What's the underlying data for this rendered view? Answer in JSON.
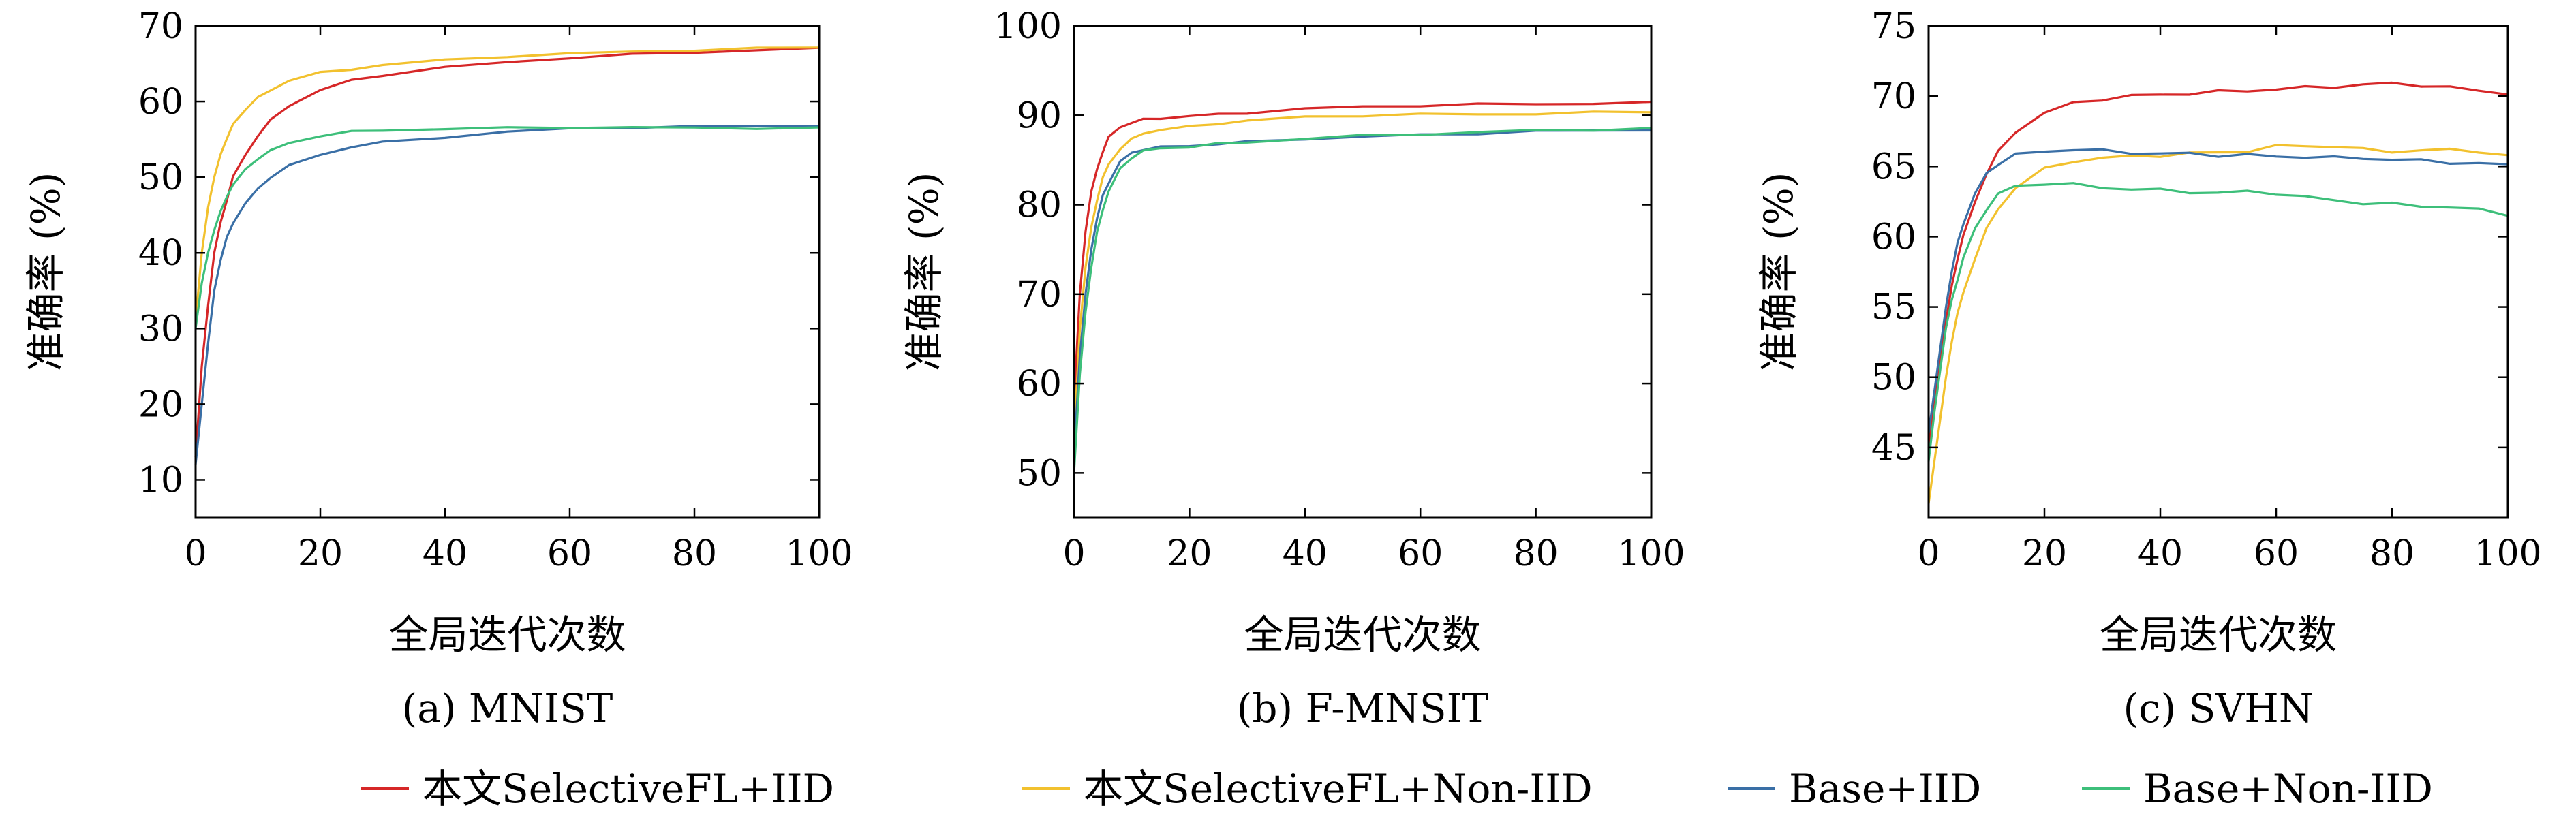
{
  "chart_data": [
    {
      "type": "line",
      "caption": "(a) MNIST",
      "xlabel": "全局迭代次数",
      "ylabel": "准确率 (%)",
      "xlim": [
        0,
        100
      ],
      "ylim": [
        5,
        70
      ],
      "xticks": [
        0,
        20,
        40,
        60,
        80,
        100
      ],
      "yticks": [
        10,
        20,
        30,
        40,
        50,
        60,
        70
      ],
      "grid": false,
      "x": [
        0,
        1,
        2,
        3,
        4,
        5,
        6,
        8,
        10,
        12,
        15,
        20,
        25,
        30,
        40,
        50,
        60,
        70,
        80,
        90,
        100
      ],
      "series": [
        {
          "name": "本文SelectiveFL+IID",
          "values": [
            13,
            25,
            33,
            40,
            44,
            47,
            50,
            53,
            55.5,
            57.5,
            59.5,
            61.5,
            62.8,
            63.5,
            64.5,
            65.2,
            65.8,
            66.2,
            66.5,
            66.8,
            67
          ]
        },
        {
          "name": "本文SelectiveFL+Non-IID",
          "values": [
            31,
            40,
            46,
            50,
            53,
            55,
            57,
            59,
            60.5,
            61.5,
            62.8,
            63.8,
            64.3,
            64.8,
            65.5,
            66,
            66.3,
            66.6,
            66.8,
            67,
            67.2
          ]
        },
        {
          "name": "Base+IID",
          "values": [
            12,
            20,
            28,
            35,
            39,
            42,
            44,
            46.5,
            48.5,
            50,
            51.5,
            53,
            54,
            54.6,
            55.3,
            56,
            56.4,
            56.6,
            56.7,
            56.8,
            56.8
          ]
        },
        {
          "name": "Base+Non-IID",
          "values": [
            30,
            36,
            40,
            43,
            45.5,
            47.5,
            49,
            51,
            52.5,
            53.5,
            54.5,
            55.5,
            56,
            56.2,
            56.4,
            56.5,
            56.6,
            56.6,
            56.5,
            56.5,
            56.5
          ]
        }
      ]
    },
    {
      "type": "line",
      "caption": "(b) F-MNSIT",
      "xlabel": "全局迭代次数",
      "ylabel": "准确率 (%)",
      "xlim": [
        0,
        100
      ],
      "ylim": [
        45,
        100
      ],
      "xticks": [
        0,
        20,
        40,
        60,
        80,
        100
      ],
      "yticks": [
        50,
        60,
        70,
        80,
        90,
        100
      ],
      "grid": false,
      "x": [
        0,
        1,
        2,
        3,
        4,
        5,
        6,
        8,
        10,
        12,
        15,
        20,
        25,
        30,
        40,
        50,
        60,
        70,
        80,
        90,
        100
      ],
      "series": [
        {
          "name": "本文SelectiveFL+IID",
          "values": [
            58,
            70,
            77,
            81.5,
            84,
            86,
            87.5,
            88.7,
            89.2,
            89.5,
            89.7,
            89.9,
            90.1,
            90.3,
            90.7,
            91,
            91.1,
            91.2,
            91.3,
            91.3,
            91.4
          ]
        },
        {
          "name": "本文SelectiveFL+Non-IID",
          "values": [
            54,
            66,
            73,
            77.5,
            80.5,
            83,
            84.5,
            86.3,
            87.3,
            88,
            88.4,
            88.7,
            89.1,
            89.4,
            89.8,
            90,
            90.1,
            90.1,
            90.2,
            90.3,
            90.4
          ]
        },
        {
          "name": "Base+IID",
          "values": [
            52,
            63,
            70,
            75,
            78.5,
            81,
            82.5,
            84.8,
            85.8,
            86.2,
            86.4,
            86.6,
            86.8,
            87,
            87.4,
            87.6,
            87.8,
            88,
            88.2,
            88.3,
            88.4
          ]
        },
        {
          "name": "Base+Non-IID",
          "values": [
            50,
            61,
            68,
            73,
            77,
            79.5,
            81.5,
            84,
            85.3,
            86,
            86.3,
            86.5,
            86.8,
            87,
            87.4,
            87.7,
            87.9,
            88.1,
            88.3,
            88.4,
            88.5
          ]
        }
      ]
    },
    {
      "type": "line",
      "caption": "(c) SVHN",
      "xlabel": "全局迭代次数",
      "ylabel": "准确率 (%)",
      "xlim": [
        0,
        100
      ],
      "ylim": [
        40,
        75
      ],
      "xticks": [
        0,
        20,
        40,
        60,
        80,
        100
      ],
      "yticks": [
        45,
        50,
        55,
        60,
        65,
        70,
        75
      ],
      "grid": false,
      "x": [
        0,
        1,
        2,
        3,
        4,
        5,
        6,
        8,
        10,
        12,
        15,
        20,
        25,
        30,
        35,
        40,
        45,
        50,
        55,
        60,
        65,
        70,
        75,
        80,
        85,
        90,
        95,
        100
      ],
      "series": [
        {
          "name": "本文SelectiveFL+IID",
          "values": [
            45,
            48,
            51,
            54,
            56.5,
            58.5,
            60,
            62.5,
            64.5,
            66,
            67.5,
            68.8,
            69.5,
            69.8,
            70,
            70.1,
            70.2,
            70.3,
            70.4,
            70.5,
            70.6,
            70.7,
            70.8,
            70.9,
            70.8,
            70.6,
            70.4,
            70.2
          ]
        },
        {
          "name": "本文SelectiveFL+Non-IID",
          "values": [
            41,
            44,
            47,
            50,
            52.5,
            54.5,
            56,
            58.5,
            60.5,
            62,
            63.5,
            64.8,
            65.4,
            65.6,
            65.7,
            65.8,
            65.9,
            66,
            66.1,
            66.4,
            66.5,
            66.4,
            66.2,
            66.1,
            66.1,
            66.2,
            66.1,
            65.7
          ]
        },
        {
          "name": "Base+IID",
          "values": [
            46,
            49,
            52,
            55,
            57.5,
            59.5,
            61,
            63,
            64.5,
            65.2,
            65.8,
            66.1,
            66.2,
            66.1,
            66,
            65.9,
            65.9,
            65.8,
            65.8,
            65.7,
            65.7,
            65.6,
            65.6,
            65.5,
            65.4,
            65.3,
            65.2,
            65.1
          ]
        },
        {
          "name": "Base+Non-IID",
          "values": [
            44,
            47.5,
            50.5,
            53.5,
            55.5,
            57,
            58.5,
            60.5,
            62,
            63,
            63.6,
            63.8,
            63.7,
            63.5,
            63.4,
            63.3,
            63.2,
            63.1,
            63.2,
            63.1,
            62.8,
            62.6,
            62.4,
            62.3,
            62.2,
            62.1,
            61.9,
            61.6
          ]
        }
      ]
    }
  ],
  "legend": {
    "position": "bottom",
    "items": [
      {
        "label": "本文SelectiveFL+IID",
        "color": "#d62728"
      },
      {
        "label": "本文SelectiveFL+Non-IID",
        "color": "#f2c12e"
      },
      {
        "label": "Base+IID",
        "color": "#3a6fa6"
      },
      {
        "label": "Base+Non-IID",
        "color": "#3dbf7a"
      }
    ]
  }
}
